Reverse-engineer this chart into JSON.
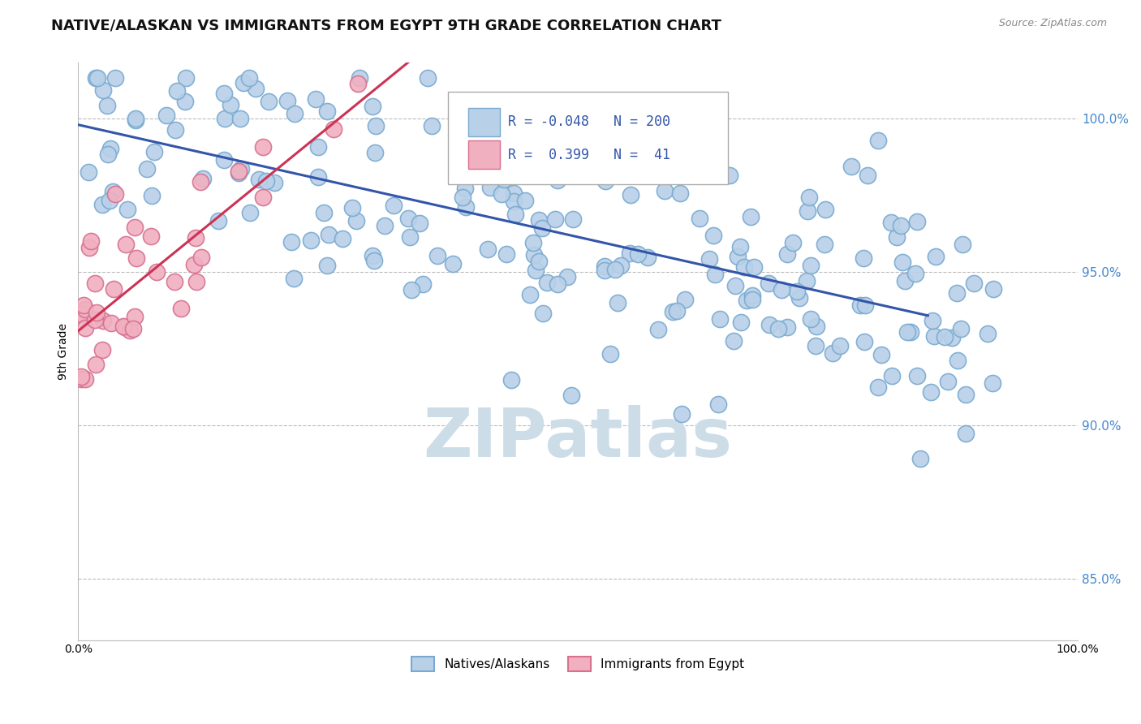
{
  "title": "NATIVE/ALASKAN VS IMMIGRANTS FROM EGYPT 9TH GRADE CORRELATION CHART",
  "source_text": "Source: ZipAtlas.com",
  "ylabel": "9th Grade",
  "watermark": "ZIPatlas",
  "blue_R": -0.048,
  "blue_N": 200,
  "pink_R": 0.399,
  "pink_N": 41,
  "blue_color": "#b8d0e8",
  "blue_edge": "#7aaad0",
  "pink_color": "#f0b0c0",
  "pink_edge": "#d87090",
  "blue_line_color": "#3355aa",
  "pink_line_color": "#cc3355",
  "legend_blue_label": "Natives/Alaskans",
  "legend_pink_label": "Immigrants from Egypt",
  "xmin": 0.0,
  "xmax": 100.0,
  "ymin": 83.0,
  "ymax": 101.8,
  "yticks": [
    85.0,
    90.0,
    95.0,
    100.0
  ],
  "ytick_labels": [
    "85.0%",
    "90.0%",
    "95.0%",
    "100.0%"
  ],
  "grid_color": "#bbbbbb",
  "background_color": "#ffffff",
  "title_fontsize": 13,
  "axis_fontsize": 10,
  "legend_fontsize": 11,
  "watermark_fontsize": 60,
  "watermark_color": "#ccdde8",
  "r_label_fontsize": 13
}
